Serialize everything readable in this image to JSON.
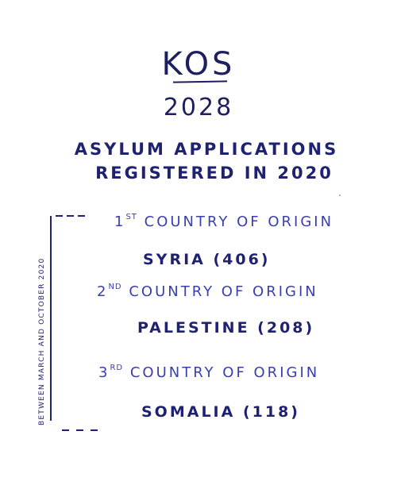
{
  "title": "KOS",
  "year": "2028",
  "heading": {
    "line1": "ASYLUM APPLICATIONS",
    "line2": "REGISTERED IN 2020"
  },
  "side_note": "BETWEEN MARCH AND OCTOBER 2020",
  "entries": [
    {
      "rank_num": "1",
      "rank_suffix": "ST",
      "rank_text": " COUNTRY OF ORIGIN",
      "country": "SYRIA (406)"
    },
    {
      "rank_num": "2",
      "rank_suffix": "ND",
      "rank_text": " COUNTRY OF ORIGIN",
      "country": "PALESTINE (208)"
    },
    {
      "rank_num": "3",
      "rank_suffix": "RD",
      "rank_text": " COUNTRY OF ORIGIN",
      "country": "SOMALIA (118)"
    }
  ],
  "colors": {
    "ink_dark": "#1f2270",
    "ink_light": "#3a3fb0",
    "background": "#ffffff"
  }
}
